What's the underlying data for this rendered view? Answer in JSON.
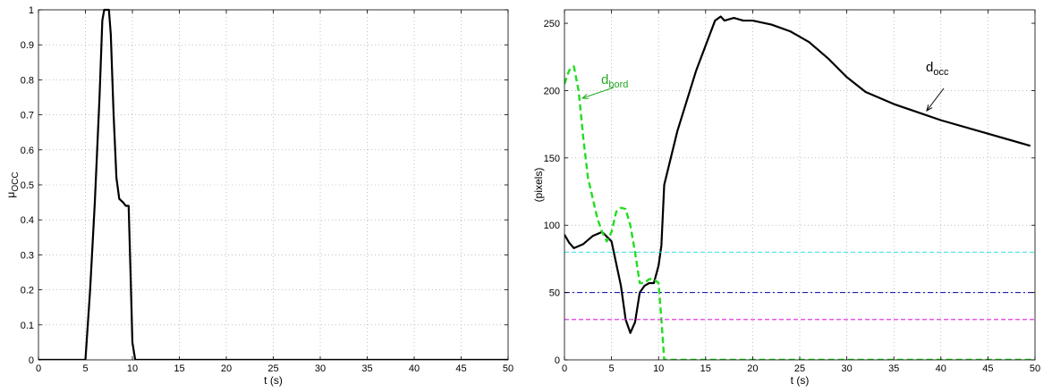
{
  "chart_data": [
    {
      "type": "line",
      "title": "",
      "xlabel": "t (s)",
      "ylabel": {
        "main": "μ",
        "sub": "OCC"
      },
      "xlim": [
        0,
        50
      ],
      "ylim": [
        0,
        1
      ],
      "xticks": [
        0,
        5,
        10,
        15,
        20,
        25,
        30,
        35,
        40,
        45,
        50
      ],
      "yticks": [
        0,
        0.1,
        0.2,
        0.3,
        0.4,
        0.5,
        0.6,
        0.7,
        0.8,
        0.9,
        1
      ],
      "grid": true,
      "series": [
        {
          "color": "#000000",
          "style": "solid",
          "x": [
            0,
            5.0,
            5.5,
            6.0,
            6.5,
            6.8,
            7.0,
            7.5,
            7.7,
            8.0,
            8.3,
            8.6,
            9.0,
            9.3,
            9.6,
            9.8,
            10.0,
            10.3,
            50
          ],
          "y": [
            0,
            0,
            0.2,
            0.45,
            0.75,
            0.97,
            1.0,
            1.0,
            0.93,
            0.7,
            0.52,
            0.46,
            0.45,
            0.44,
            0.44,
            0.25,
            0.05,
            0,
            0
          ]
        }
      ]
    },
    {
      "type": "line",
      "title": "",
      "xlabel": "t (s)",
      "ylabel": "(pixels)",
      "xlim": [
        0,
        50
      ],
      "ylim": [
        0,
        260
      ],
      "xticks": [
        0,
        5,
        10,
        15,
        20,
        25,
        30,
        35,
        40,
        45,
        50
      ],
      "yticks": [
        0,
        50,
        100,
        150,
        200,
        250
      ],
      "grid": true,
      "annotations": [
        {
          "text": "d",
          "sub": "bord",
          "color": "#22aa22"
        },
        {
          "text": "d",
          "sub": "occ",
          "color": "#000000"
        }
      ],
      "series": [
        {
          "name": "d_occ",
          "color": "#000000",
          "style": "solid",
          "x": [
            0,
            0.5,
            1.0,
            2.0,
            3.0,
            4.0,
            5.0,
            6.0,
            6.5,
            7.0,
            7.5,
            8.0,
            8.5,
            9.0,
            9.5,
            10.0,
            10.3,
            10.6,
            12,
            14,
            16,
            16.6,
            17,
            18,
            19,
            20,
            22,
            24,
            26,
            28,
            30,
            32,
            35,
            40,
            45,
            49.5
          ],
          "y": [
            93,
            87,
            83,
            86,
            92,
            95,
            88,
            55,
            30,
            20,
            28,
            50,
            55,
            57,
            57,
            70,
            85,
            130,
            170,
            215,
            252,
            255,
            252,
            254,
            252,
            252,
            249,
            244,
            236,
            224,
            210,
            199,
            190,
            178,
            168,
            159
          ]
        },
        {
          "name": "d_bord",
          "color": "#22dd22",
          "style": "dashed",
          "x": [
            0,
            0.5,
            1.0,
            1.5,
            2.0,
            2.5,
            3.0,
            3.5,
            4.0,
            4.5,
            5.0,
            5.5,
            6.0,
            6.5,
            7.0,
            7.5,
            8.0,
            8.5,
            9.0,
            9.5,
            10.0,
            10.3,
            10.6,
            11,
            50
          ],
          "y": [
            205,
            215,
            218,
            200,
            165,
            135,
            120,
            105,
            95,
            88,
            95,
            110,
            113,
            112,
            100,
            80,
            57,
            57,
            60,
            60,
            57,
            30,
            0,
            0,
            0
          ]
        },
        {
          "color": "#33e0e0",
          "style": "dashed",
          "x": [
            0,
            50
          ],
          "y": [
            80,
            80
          ]
        },
        {
          "color": "#0000aa",
          "style": "dashdot",
          "x": [
            0,
            50
          ],
          "y": [
            50,
            50
          ]
        },
        {
          "color": "#dd22dd",
          "style": "dashed",
          "x": [
            0,
            50
          ],
          "y": [
            30,
            30
          ]
        }
      ]
    }
  ]
}
